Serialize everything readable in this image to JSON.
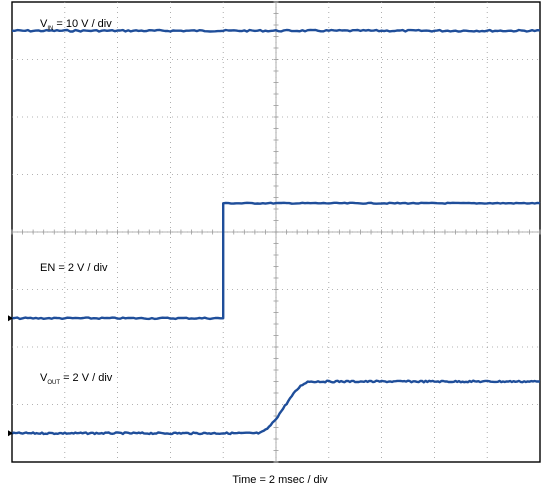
{
  "chart_data": {
    "type": "line",
    "grid": true,
    "xlabel": "Time = 2 msec / div",
    "grid_divisions": {
      "x": 10,
      "y": 8
    },
    "series": [
      {
        "name": "VIN",
        "label_main": "V",
        "label_sub": "IN",
        "label_rest": " = 10 V / div",
        "color": "#1f4e9a",
        "level_div": 7.5,
        "step": null
      },
      {
        "name": "EN",
        "label_main": "EN = 2 V / div",
        "label_sub": "",
        "label_rest": "",
        "color": "#1f4e9a",
        "low_div": 2.5,
        "high_div": 4.5,
        "step_at_div": 4.0
      },
      {
        "name": "VOUT",
        "label_main": "V",
        "label_sub": "OUT",
        "label_rest": " = 2 V / div",
        "color": "#1f4e9a",
        "low_div": 0.5,
        "high_div": 1.4,
        "rise_start_div": 4.65,
        "rise_end_div": 5.65
      }
    ]
  }
}
